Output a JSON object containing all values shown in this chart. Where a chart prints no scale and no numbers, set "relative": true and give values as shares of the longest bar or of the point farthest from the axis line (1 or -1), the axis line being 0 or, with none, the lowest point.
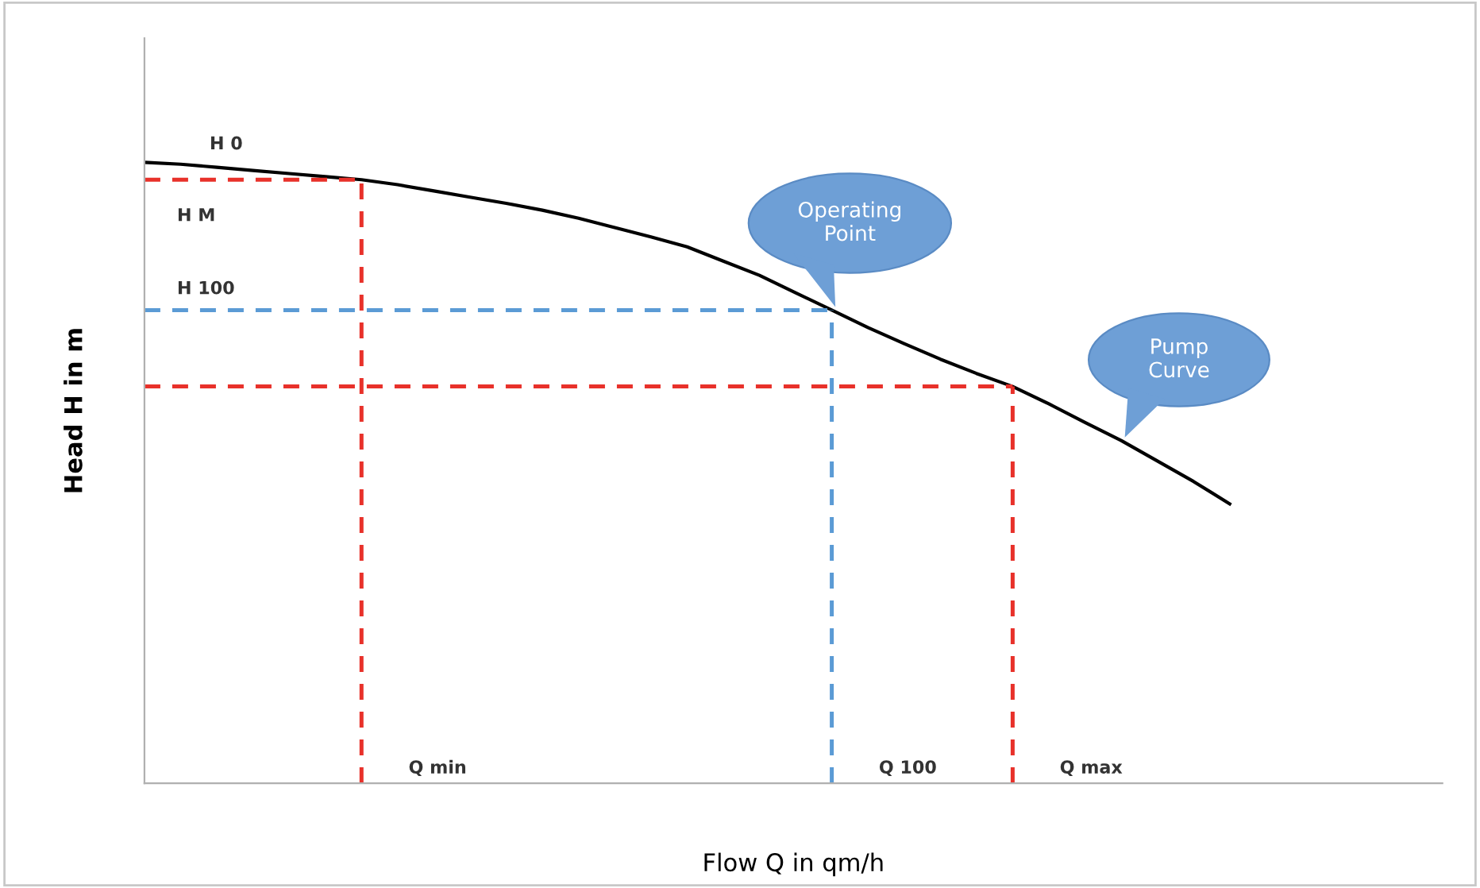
{
  "chart_data": {
    "type": "line",
    "relative": true,
    "xlabel": "Flow Q in qm/h",
    "ylabel": "Head H in m",
    "categories": [
      null,
      null,
      null,
      null,
      null,
      null,
      null,
      null,
      null,
      null,
      null,
      null,
      null,
      null,
      null,
      null,
      null,
      null,
      null,
      null,
      null,
      null,
      null,
      null,
      null,
      null,
      null,
      null,
      null,
      null,
      null
    ],
    "series": [
      {
        "color": "#000000",
        "values": [
          1.0,
          0.997,
          0.992,
          0.987,
          0.982,
          0.977,
          0.972,
          0.964,
          0.954,
          0.944,
          0.934,
          0.923,
          0.91,
          0.895,
          0.88,
          0.864,
          0.841,
          0.818,
          0.79,
          0.762,
          0.734,
          0.708,
          0.683,
          0.66,
          0.639,
          0.611,
          0.581,
          0.552,
          0.519,
          0.486,
          0.45
        ]
      }
    ],
    "ref_lines": [
      {
        "axis": "y",
        "value": 0.972,
        "label": "H M",
        "color": "#e8312a",
        "line_style": "dashed"
      },
      {
        "axis": "y",
        "value": 0.762,
        "label": "H 100",
        "color": "#5b9bd5",
        "line_style": "dashed"
      },
      {
        "axis": "y",
        "value": 0.639,
        "label": null,
        "color": "#e8312a",
        "line_style": "dashed"
      }
    ],
    "annotations": [
      "H 0",
      "Operating Point",
      "Pump Curve",
      "Q min",
      "Q 100",
      "Q max"
    ],
    "grid": false,
    "marker": "none",
    "line_style": "solid"
  }
}
